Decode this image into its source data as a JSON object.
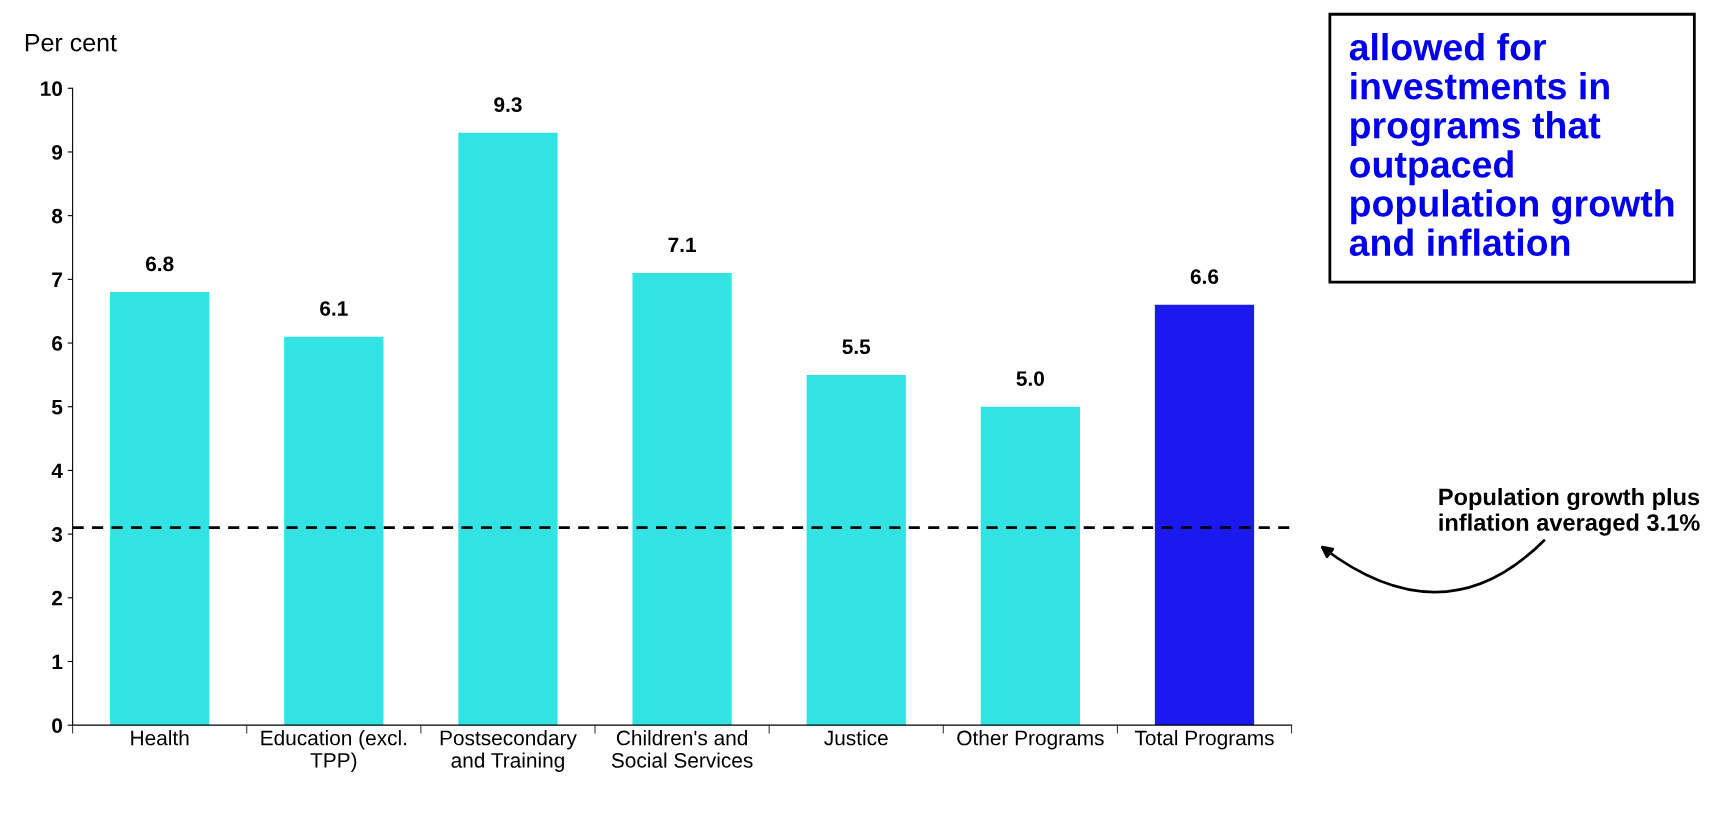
{
  "chart_data": {
    "type": "bar",
    "ylabel": "Per cent",
    "categories": [
      "Health",
      "Education (excl.\nTPP)",
      "Postsecondary\nand Training",
      "Children's and\nSocial Services",
      "Justice",
      "Other Programs",
      "Total Programs"
    ],
    "values": [
      6.8,
      6.1,
      9.3,
      7.1,
      5.5,
      5.0,
      6.6
    ],
    "colors": [
      "#33e3e3",
      "#33e3e3",
      "#33e3e3",
      "#33e3e3",
      "#33e3e3",
      "#33e3e3",
      "#1a1aee"
    ],
    "value_labels": [
      "6.8",
      "6.1",
      "9.3",
      "7.1",
      "5.5",
      "5.0",
      "6.6"
    ],
    "ylim": [
      0,
      10
    ],
    "yticks": [
      0,
      1,
      2,
      3,
      4,
      5,
      6,
      7,
      8,
      9,
      10
    ],
    "ref_lines": [
      {
        "axis": "y",
        "value": 3.1,
        "label": "Population growth plus\ninflation averaged 3.1%",
        "color": "#000000",
        "line_style": "dashed"
      }
    ],
    "annotations": [
      "allowed for\ninvestments in\nprograms that\noutpaced\npopulation growth\nand inflation"
    ]
  }
}
